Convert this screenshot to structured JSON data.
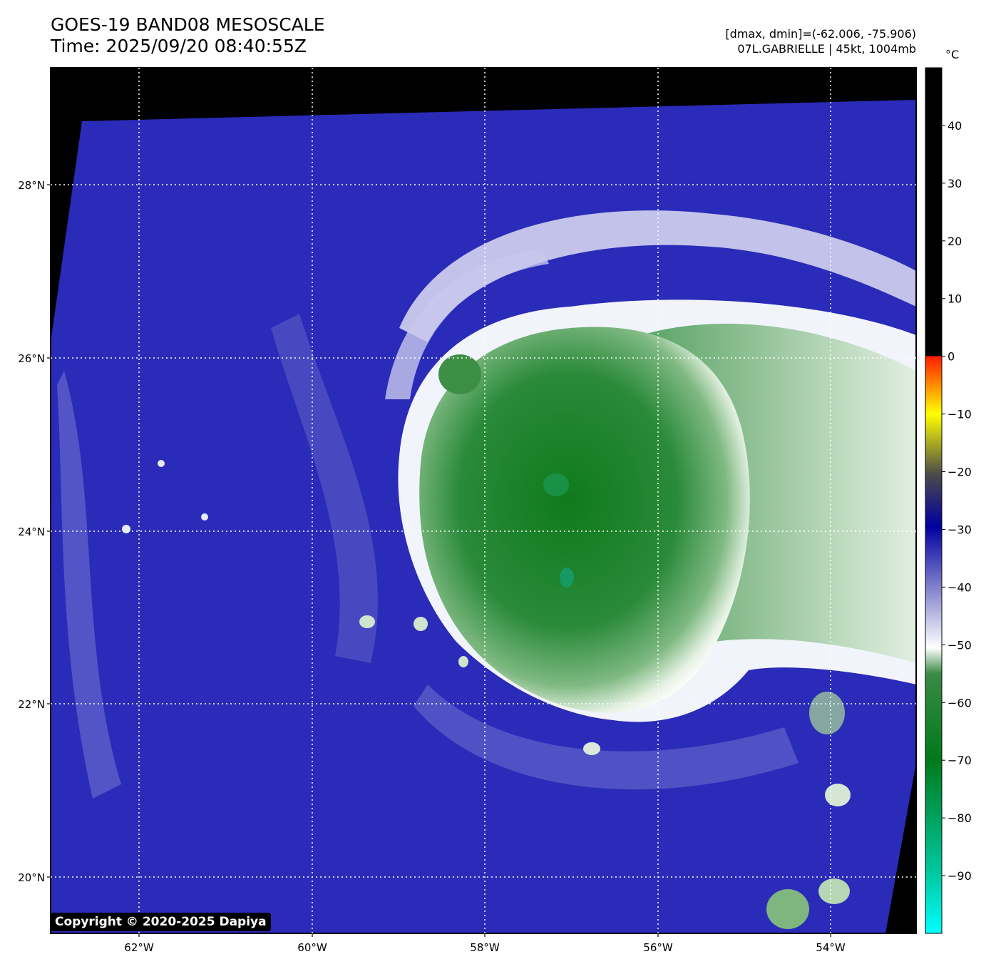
{
  "header": {
    "title": "GOES-19 BAND08 MESOSCALE",
    "time": "Time: 2025/09/20 08:40:55Z",
    "range": "[dmax, dmin]=(-62.006, -75.906)",
    "storm": "07L.GABRIELLE | 45kt, 1004mb"
  },
  "map": {
    "lon_ticks": [
      "62°W",
      "60°W",
      "58°W",
      "56°W",
      "54°W"
    ],
    "lat_ticks": [
      "28°N",
      "26°N",
      "24°N",
      "22°N",
      "20°N"
    ],
    "gridlines": true
  },
  "colorbar": {
    "unit": "°C",
    "ticks": [
      "40",
      "30",
      "20",
      "10",
      "0",
      "−10",
      "−20",
      "−30",
      "−40",
      "−50",
      "−60",
      "−70",
      "−80",
      "−90"
    ],
    "tick_values": [
      40,
      30,
      20,
      10,
      0,
      -10,
      -20,
      -30,
      -40,
      -50,
      -60,
      -70,
      -80,
      -90
    ],
    "vmin": -100,
    "vmax": 50
  },
  "copyright": "Copyright © 2020-2025 Dapiya"
}
